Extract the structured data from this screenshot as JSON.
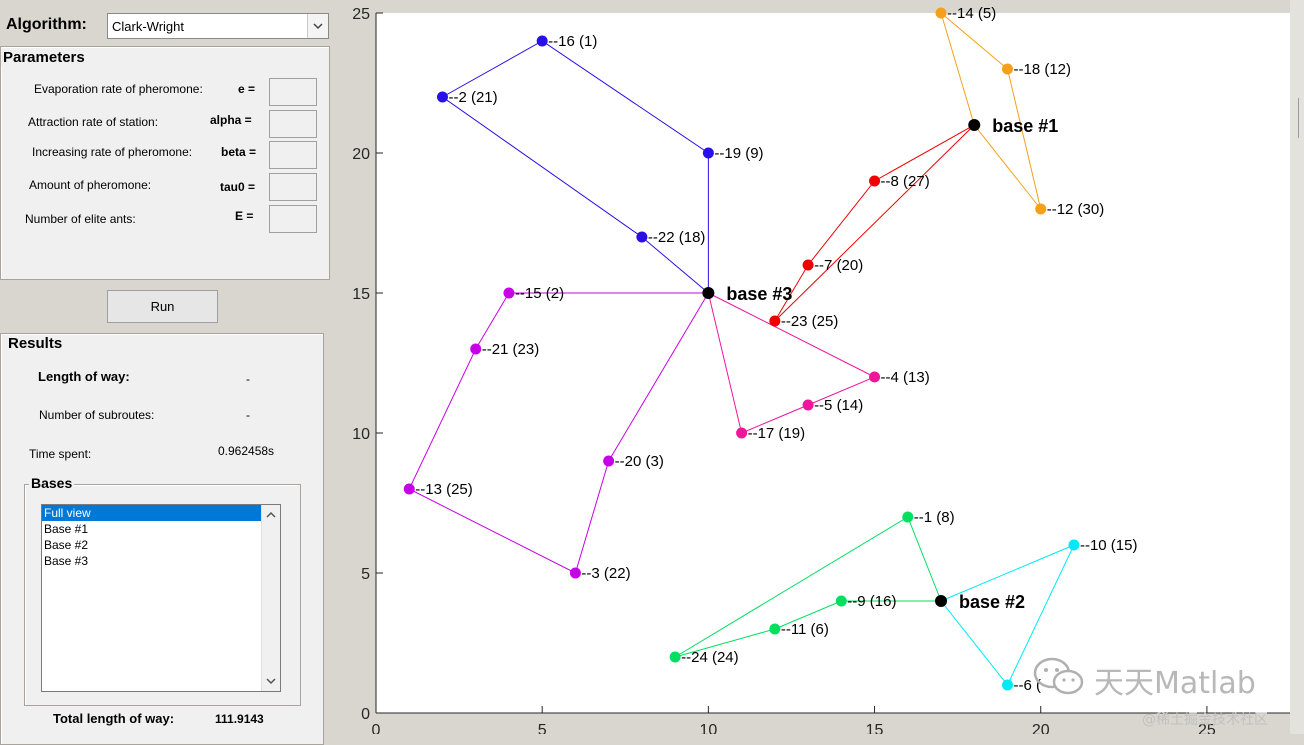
{
  "algorithm": {
    "label": "Algorithm:",
    "value": "Clark-Wright"
  },
  "parameters": {
    "title": "Parameters",
    "rows": [
      {
        "label": "Evaporation rate of pheromone:",
        "symbol": "e ="
      },
      {
        "label": "Attraction rate of station:",
        "symbol": "alpha ="
      },
      {
        "label": "Increasing rate of pheromone:",
        "symbol": "beta ="
      },
      {
        "label": "Amount of pheromone:",
        "symbol": "tau0 ="
      },
      {
        "label": "Number of elite ants:",
        "symbol": "E ="
      }
    ]
  },
  "run_label": "Run",
  "results": {
    "title": "Results",
    "length_label": "Length of way:",
    "length_value": "-",
    "subroutes_label": "Number of subroutes:",
    "subroutes_value": "-",
    "time_label": "Time spent:",
    "time_value": "0.962458s",
    "bases_title": "Bases",
    "bases_items": [
      "Full view",
      "Base #1",
      "Base #2",
      "Base #3"
    ],
    "bases_selected": 0,
    "total_label": "Total length of way:",
    "total_value": "111.9143"
  },
  "watermark": {
    "main": "天天Matlab",
    "sub": "@稀土掘金技术社区"
  },
  "colors": {
    "base1_route": "#f5a01a",
    "base1_route_b": "#f00000",
    "base2_route": "#00e060",
    "base2_route_b": "#00eaf5",
    "base3_route": "#2a10e8",
    "base3_route_b": "#c800e8",
    "base3_route_c": "#f0159a",
    "base": "#000000",
    "selection": "#0078d7"
  },
  "chart_data": {
    "type": "scatter",
    "xlim": [
      0,
      27.5
    ],
    "ylim": [
      0,
      25
    ],
    "xticks": [
      0,
      5,
      10,
      15,
      20,
      25
    ],
    "yticks": [
      0,
      5,
      10,
      15,
      20,
      25
    ],
    "grid": false,
    "bases": [
      {
        "label": "base #1",
        "x": 18,
        "y": 21
      },
      {
        "label": "base #2",
        "x": 17,
        "y": 4
      },
      {
        "label": "base #3",
        "x": 10,
        "y": 15
      }
    ],
    "nodes": [
      {
        "label": "--14 (5)",
        "x": 17,
        "y": 25,
        "color": "#f5a01a"
      },
      {
        "label": "--18 (12)",
        "x": 19,
        "y": 23,
        "color": "#f5a01a"
      },
      {
        "label": "--12 (30)",
        "x": 20,
        "y": 18,
        "color": "#f5a01a"
      },
      {
        "label": "--8 (27)",
        "x": 15,
        "y": 19,
        "color": "#f00000"
      },
      {
        "label": "--7 (20)",
        "x": 13,
        "y": 16,
        "color": "#f00000"
      },
      {
        "label": "--23 (25)",
        "x": 12,
        "y": 14,
        "color": "#f00000"
      },
      {
        "label": "--16 (1)",
        "x": 5,
        "y": 24,
        "color": "#2a10e8"
      },
      {
        "label": "--2 (21)",
        "x": 2,
        "y": 22,
        "color": "#2a10e8"
      },
      {
        "label": "--19 (9)",
        "x": 10,
        "y": 20,
        "color": "#2a10e8"
      },
      {
        "label": "--22 (18)",
        "x": 8,
        "y": 17,
        "color": "#2a10e8"
      },
      {
        "label": "--15 (2)",
        "x": 4,
        "y": 15,
        "color": "#c800e8"
      },
      {
        "label": "--21 (23)",
        "x": 3,
        "y": 13,
        "color": "#c800e8"
      },
      {
        "label": "--13 (25)",
        "x": 1,
        "y": 8,
        "color": "#c800e8"
      },
      {
        "label": "--3 (22)",
        "x": 6,
        "y": 5,
        "color": "#c800e8"
      },
      {
        "label": "--20 (3)",
        "x": 7,
        "y": 9,
        "color": "#c800e8"
      },
      {
        "label": "--4 (13)",
        "x": 15,
        "y": 12,
        "color": "#f0159a"
      },
      {
        "label": "--5 (14)",
        "x": 13,
        "y": 11,
        "color": "#f0159a"
      },
      {
        "label": "--17 (19)",
        "x": 11,
        "y": 10,
        "color": "#f0159a"
      },
      {
        "label": "--1 (8)",
        "x": 16,
        "y": 7,
        "color": "#00e060"
      },
      {
        "label": "--9 (16)",
        "x": 14,
        "y": 4,
        "color": "#00e060"
      },
      {
        "label": "--11 (6)",
        "x": 12,
        "y": 3,
        "color": "#00e060"
      },
      {
        "label": "--24 (24)",
        "x": 9,
        "y": 2,
        "color": "#00e060"
      },
      {
        "label": "--10 (15)",
        "x": 21,
        "y": 6,
        "color": "#00eaf5"
      },
      {
        "label": "--6 (",
        "x": 19,
        "y": 1,
        "color": "#00eaf5"
      }
    ],
    "routes": [
      {
        "color": "#f5a01a",
        "points": [
          [
            18,
            21
          ],
          [
            17,
            25
          ],
          [
            19,
            23
          ],
          [
            20,
            18
          ],
          [
            18,
            21
          ]
        ]
      },
      {
        "color": "#f00000",
        "points": [
          [
            18,
            21
          ],
          [
            15,
            19
          ],
          [
            13,
            16
          ],
          [
            12,
            14
          ],
          [
            18,
            21
          ]
        ]
      },
      {
        "color": "#2a10e8",
        "points": [
          [
            10,
            15
          ],
          [
            8,
            17
          ],
          [
            2,
            22
          ],
          [
            5,
            24
          ],
          [
            10,
            20
          ],
          [
            10,
            15
          ]
        ]
      },
      {
        "color": "#c800e8",
        "points": [
          [
            10,
            15
          ],
          [
            4,
            15
          ],
          [
            3,
            13
          ],
          [
            1,
            8
          ],
          [
            6,
            5
          ],
          [
            7,
            9
          ],
          [
            10,
            15
          ]
        ]
      },
      {
        "color": "#f0159a",
        "points": [
          [
            10,
            15
          ],
          [
            15,
            12
          ],
          [
            13,
            11
          ],
          [
            11,
            10
          ],
          [
            10,
            15
          ]
        ]
      },
      {
        "color": "#00e060",
        "points": [
          [
            17,
            4
          ],
          [
            16,
            7
          ],
          [
            9,
            2
          ],
          [
            12,
            3
          ],
          [
            14,
            4
          ],
          [
            17,
            4
          ]
        ]
      },
      {
        "color": "#00eaf5",
        "points": [
          [
            17,
            4
          ],
          [
            21,
            6
          ],
          [
            19,
            1
          ],
          [
            17,
            4
          ]
        ]
      }
    ]
  }
}
